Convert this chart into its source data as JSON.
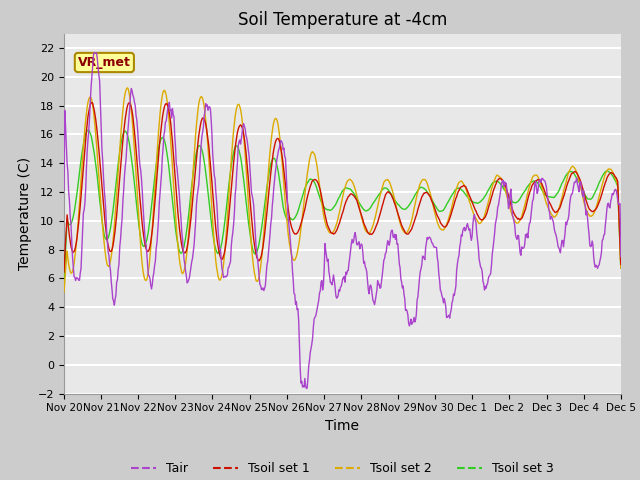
{
  "title": "Soil Temperature at -4cm",
  "xlabel": "Time",
  "ylabel": "Temperature (C)",
  "ylim": [
    -2,
    23
  ],
  "yticks": [
    -2,
    0,
    2,
    4,
    6,
    8,
    10,
    12,
    14,
    16,
    18,
    20,
    22
  ],
  "xtick_labels": [
    "Nov 20",
    "Nov 21",
    "Nov 22",
    "Nov 23",
    "Nov 24",
    "Nov 25",
    "Nov 26",
    "Nov 27",
    "Nov 28",
    "Nov 29",
    "Nov 30",
    "Dec 1",
    "Dec 2",
    "Dec 3",
    "Dec 4",
    "Dec 5"
  ],
  "legend_labels": [
    "Tair",
    "Tsoil set 1",
    "Tsoil set 2",
    "Tsoil set 3"
  ],
  "colors": {
    "Tair": "#aa44cc",
    "Tsoil1": "#cc1100",
    "Tsoil2": "#ddaa00",
    "Tsoil3": "#33cc22"
  },
  "annotation_text": "VR_met",
  "annotation_color": "#8b0000",
  "annotation_bg": "#ffff99",
  "annotation_border": "#aa8800",
  "fig_bg": "#cccccc",
  "plot_bg": "#e8e8e8",
  "grid_color": "#ffffff",
  "title_fontsize": 12,
  "axis_label_fontsize": 10,
  "tick_fontsize": 8,
  "legend_fontsize": 9
}
